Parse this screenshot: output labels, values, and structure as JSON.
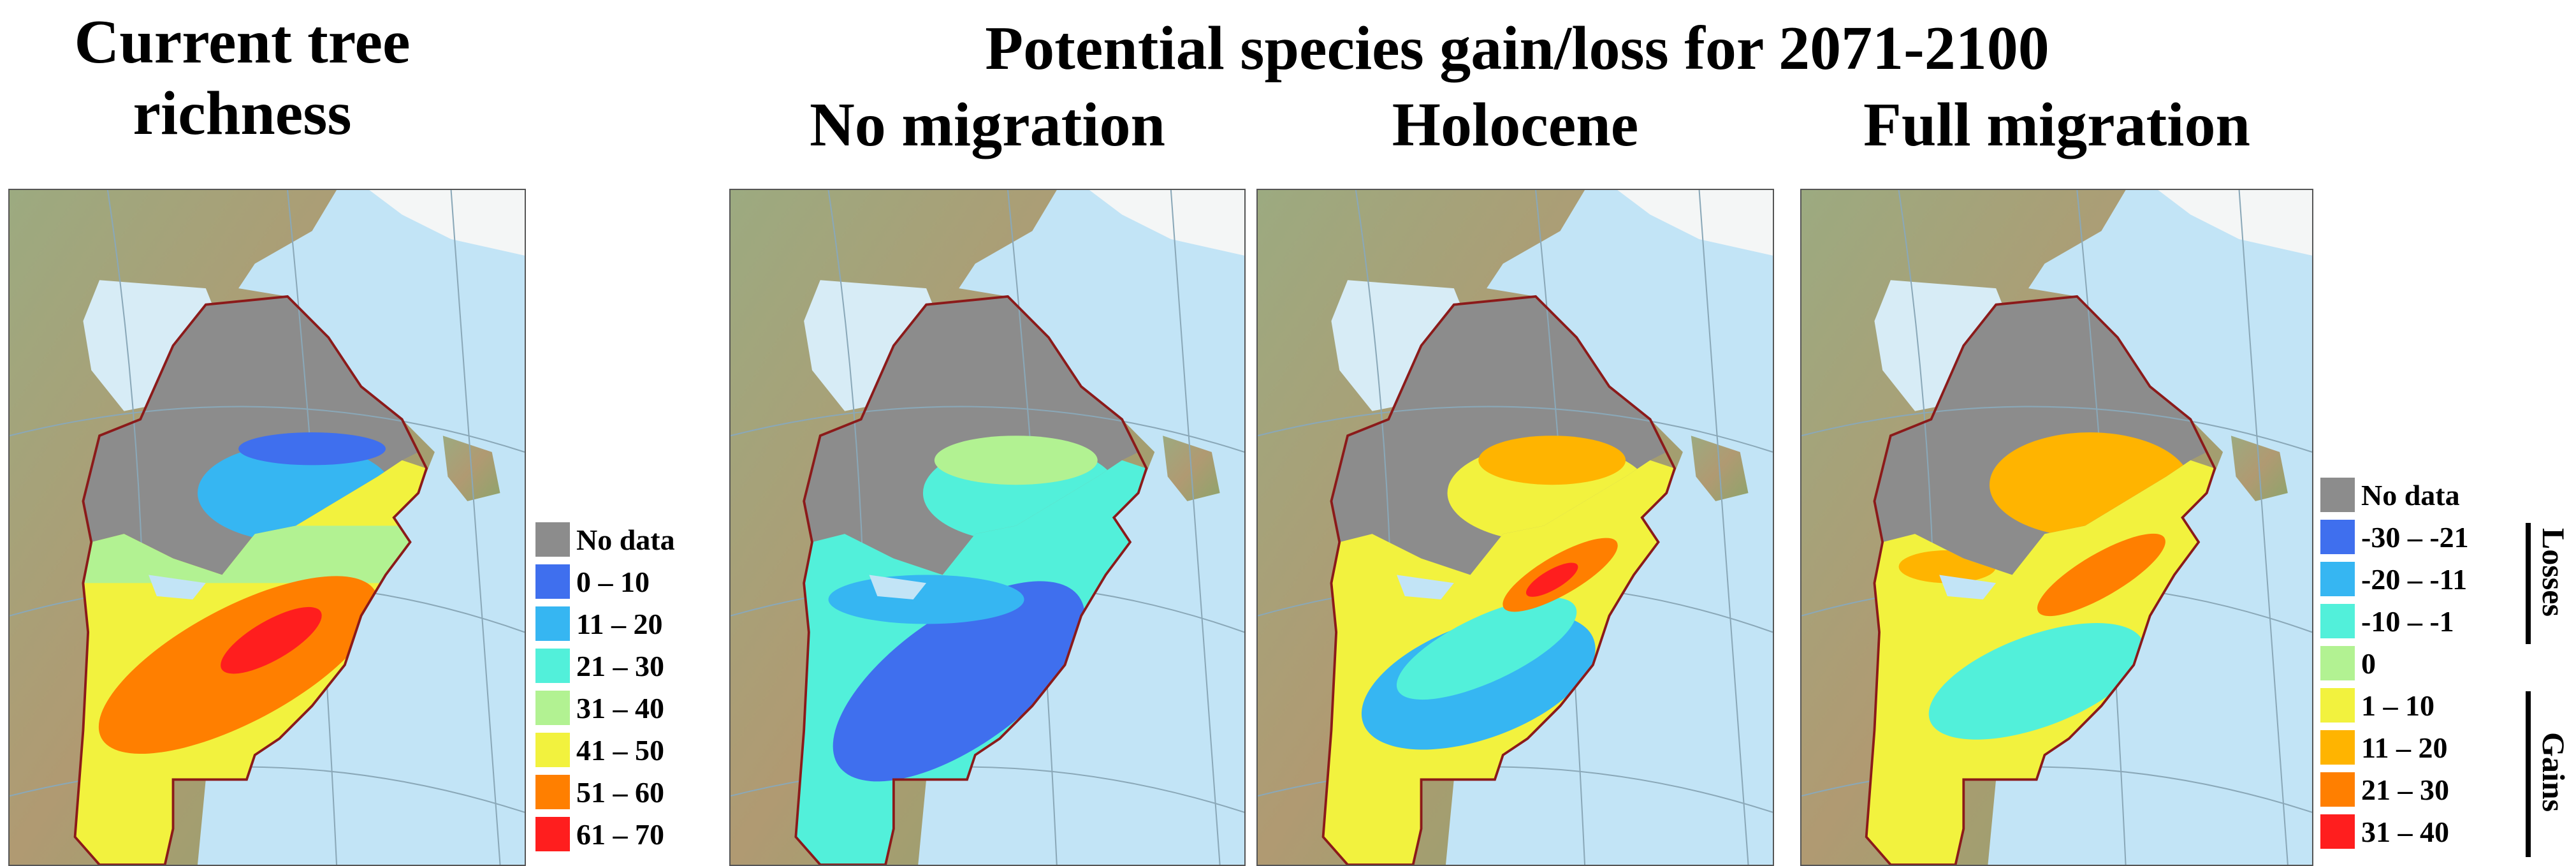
{
  "header": {
    "left_title": "Current tree richness",
    "main_title": "Potential species gain/loss for 2071-2100"
  },
  "panels": [
    "No migration",
    "Holocene",
    "Full migration"
  ],
  "legend_current": {
    "items": [
      {
        "label": "No data",
        "color": "#8c8c8c"
      },
      {
        "label": "0 – 10",
        "color": "#3f6fee"
      },
      {
        "label": "11 – 20",
        "color": "#36b6f2"
      },
      {
        "label": "21 – 30",
        "color": "#52f0da"
      },
      {
        "label": "31 – 40",
        "color": "#b2f292"
      },
      {
        "label": "41 – 50",
        "color": "#f2f23e"
      },
      {
        "label": "51 – 60",
        "color": "#ff7f00"
      },
      {
        "label": "61 – 70",
        "color": "#ff1e1e"
      }
    ]
  },
  "legend_change": {
    "items": [
      {
        "label": "No data",
        "color": "#8c8c8c"
      },
      {
        "label": "-30 – -21",
        "color": "#3f6fee"
      },
      {
        "label": "-20 – -11",
        "color": "#36b6f2"
      },
      {
        "label": "-10 – -1",
        "color": "#52f0da"
      },
      {
        "label": "0",
        "color": "#b2f292"
      },
      {
        "label": "1 – 10",
        "color": "#f2f23e"
      },
      {
        "label": "11 – 20",
        "color": "#ffb400"
      },
      {
        "label": "21 – 30",
        "color": "#ff7f00"
      },
      {
        "label": "31 – 40",
        "color": "#ff1e1e"
      }
    ],
    "group_labels": [
      "Losses",
      "Gains"
    ]
  }
}
